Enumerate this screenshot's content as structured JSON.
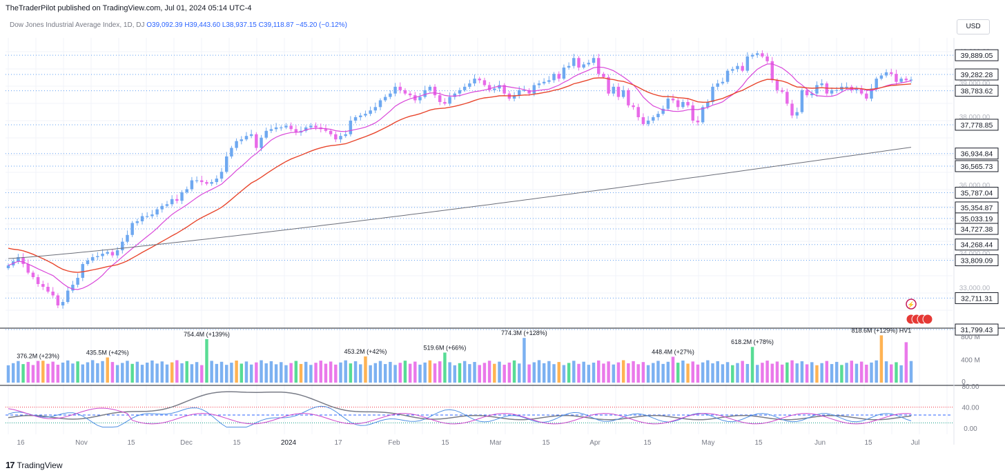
{
  "header": {
    "publisher_line": "TheTraderPilot published on TradingView.com, Jul 01, 2024 05:14 UTC-4"
  },
  "legend": {
    "symbol": "Dow Jones Industrial Average Index, 1D, DJ",
    "open": "O39,092.39",
    "high": "H39,443.60",
    "low": "L38,937.15",
    "close": "C39,118.87",
    "change": "−45.20 (−0.12%)"
  },
  "currency_button": "USD",
  "footer": {
    "brand": "TradingView"
  },
  "colors": {
    "up": "#6ea8f0",
    "down": "#e86ae8",
    "ma_fast": "#d946d9",
    "ma_mid": "#e8452c",
    "ma_slow": "#6a6d78",
    "level_line": "#5b9cf0",
    "label_bg": "#ffffff",
    "vol_blue": "#6ea8f0",
    "vol_pink": "#e86ae8",
    "vol_green": "#46d88a",
    "vol_orange": "#ffab40",
    "rsi_grey": "#787b86",
    "rsi_blue": "#4d8fe3",
    "rsi_pink": "#cc44cc"
  },
  "chart_data": [
    {
      "type": "candlestick",
      "name": "Dow Jones Industrial Average Index, 1D",
      "y_axis_ticks": [
        "40,000.00",
        "39,000.00",
        "38,000.00",
        "36,000.00",
        "34,000.00",
        "33,000.00"
      ],
      "x_axis_ticks": [
        "16",
        "Nov",
        "15",
        "Dec",
        "15",
        "2024",
        "17",
        "Feb",
        "15",
        "Mar",
        "15",
        "Apr",
        "15",
        "May",
        "15",
        "Jun",
        "15",
        "Jul"
      ],
      "price_levels": [
        "39,889.05",
        "39,282.28",
        "38,783.62",
        "37,778.85",
        "36,934.84",
        "36,565.73",
        "35,787.04",
        "35,354.87",
        "35,033.19",
        "34,727.38",
        "34,268.44",
        "33,809.09",
        "32,711.31",
        "31,799.43"
      ],
      "closes": [
        33660,
        33780,
        33900,
        33700,
        33450,
        33320,
        33120,
        33040,
        32900,
        32790,
        32500,
        32600,
        32930,
        33100,
        33300,
        33700,
        33800,
        33900,
        33930,
        34000,
        34050,
        33950,
        34100,
        34350,
        34550,
        34900,
        34950,
        35100,
        35100,
        35150,
        35300,
        35400,
        35450,
        35600,
        35550,
        35800,
        35890,
        36150,
        36150,
        36100,
        36050,
        36100,
        36200,
        36400,
        36850,
        37100,
        37300,
        37350,
        37450,
        37500,
        37100,
        37400,
        37600,
        37650,
        37700,
        37700,
        37750,
        37650,
        37550,
        37600,
        37700,
        37750,
        37700,
        37650,
        37600,
        37500,
        37350,
        37450,
        37500,
        37900,
        38000,
        38050,
        38100,
        38200,
        38300,
        38500,
        38600,
        38700,
        38900,
        38800,
        38700,
        38650,
        38500,
        38600,
        38800,
        38900,
        38650,
        38450,
        38400,
        38600,
        38700,
        38800,
        38900,
        39000,
        39150,
        39100,
        38950,
        38800,
        38850,
        38950,
        38700,
        38550,
        38650,
        38800,
        38800,
        38700,
        38950,
        39000,
        39050,
        39100,
        39300,
        39150,
        39500,
        39550,
        39800,
        39500,
        39600,
        39650,
        39800,
        39300,
        39200,
        38700,
        38900,
        38600,
        38800,
        38350,
        38300,
        38000,
        37800,
        37900,
        38000,
        38100,
        38250,
        38550,
        38500,
        38300,
        38450,
        38350,
        37900,
        37850,
        38300,
        38450,
        38900,
        39000,
        39050,
        39400,
        39450,
        39550,
        39400,
        39850,
        39900,
        39950,
        39850,
        39700,
        39100,
        38800,
        38750,
        38400,
        38050,
        38150,
        38800,
        38650,
        38700,
        38950,
        39000,
        38700,
        38800,
        38800,
        38900,
        38900,
        38800,
        38850,
        38700,
        38550,
        38850,
        39150,
        39250,
        39350,
        39300,
        39050,
        39150,
        39100,
        39120
      ]
    },
    {
      "type": "bar",
      "name": "Volume",
      "y_axis_ticks": [
        "800 M",
        "400 M",
        "0"
      ],
      "annotations": [
        "376.2M (+23%)",
        "435.5M (+42%)",
        "754.4M (+139%)",
        "453.2M (+42%)",
        "519.6M (+66%)",
        "774.3M (+128%)",
        "448.4M (+27%)",
        "618.2M (+78%)",
        "818.6M (+129%) HV1"
      ]
    },
    {
      "type": "line",
      "name": "Oscillator",
      "y_axis_ticks": [
        "80.00",
        "40.00",
        "0.00"
      ],
      "ylim": [
        0,
        80
      ]
    }
  ]
}
